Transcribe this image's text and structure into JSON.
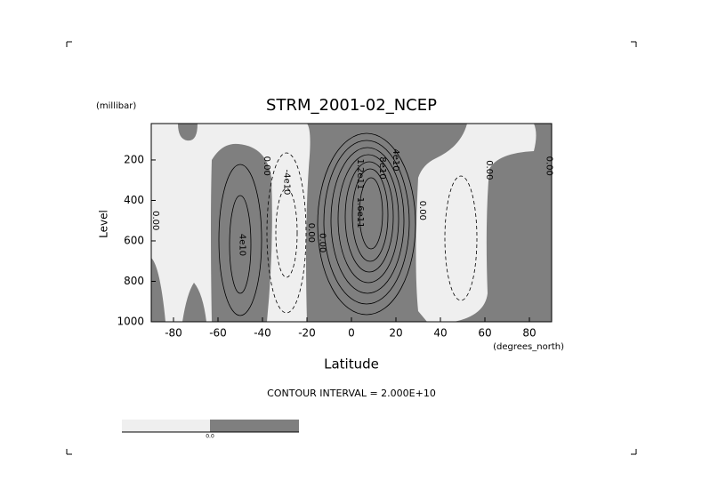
{
  "chart_data": {
    "type": "contour",
    "title": "STRM_2001-02_NCEP",
    "x_label": "Latitude",
    "x_unit": "(degrees_north)",
    "y_label": "Level",
    "y_unit": "(millibar)",
    "xlim": [
      -90,
      90
    ],
    "xticks": [
      -80,
      -60,
      -40,
      -20,
      0,
      20,
      40,
      60,
      80
    ],
    "ylim": [
      1000,
      20
    ],
    "yticks": [
      1000,
      800,
      600,
      400,
      200
    ],
    "note": "CONTOUR INTERVAL = 2.000E+10",
    "fill_colors": [
      "#efefef",
      "#7f7f7f"
    ],
    "colorbar_labels": [
      "0.0"
    ],
    "contour_labels": [
      {
        "text": "0.00",
        "lat": -88,
        "level": 500
      },
      {
        "text": "4e10",
        "lat": -49,
        "level": 620
      },
      {
        "text": "0.00",
        "lat": -38,
        "level": 230
      },
      {
        "text": "-4e10",
        "lat": -29,
        "level": 310
      },
      {
        "text": "0.00",
        "lat": -18,
        "level": 560
      },
      {
        "text": "0.00",
        "lat": -13,
        "level": 610
      },
      {
        "text": "1.6e11",
        "lat": 4,
        "level": 460
      },
      {
        "text": "1.2e11",
        "lat": 4,
        "level": 270
      },
      {
        "text": "8e10",
        "lat": 14,
        "level": 240
      },
      {
        "text": "4e10",
        "lat": 20,
        "level": 200
      },
      {
        "text": "0.00",
        "lat": 32,
        "level": 450
      },
      {
        "text": "0.00",
        "lat": 62,
        "level": 250
      },
      {
        "text": "0.00",
        "lat": 89,
        "level": 230
      }
    ]
  }
}
